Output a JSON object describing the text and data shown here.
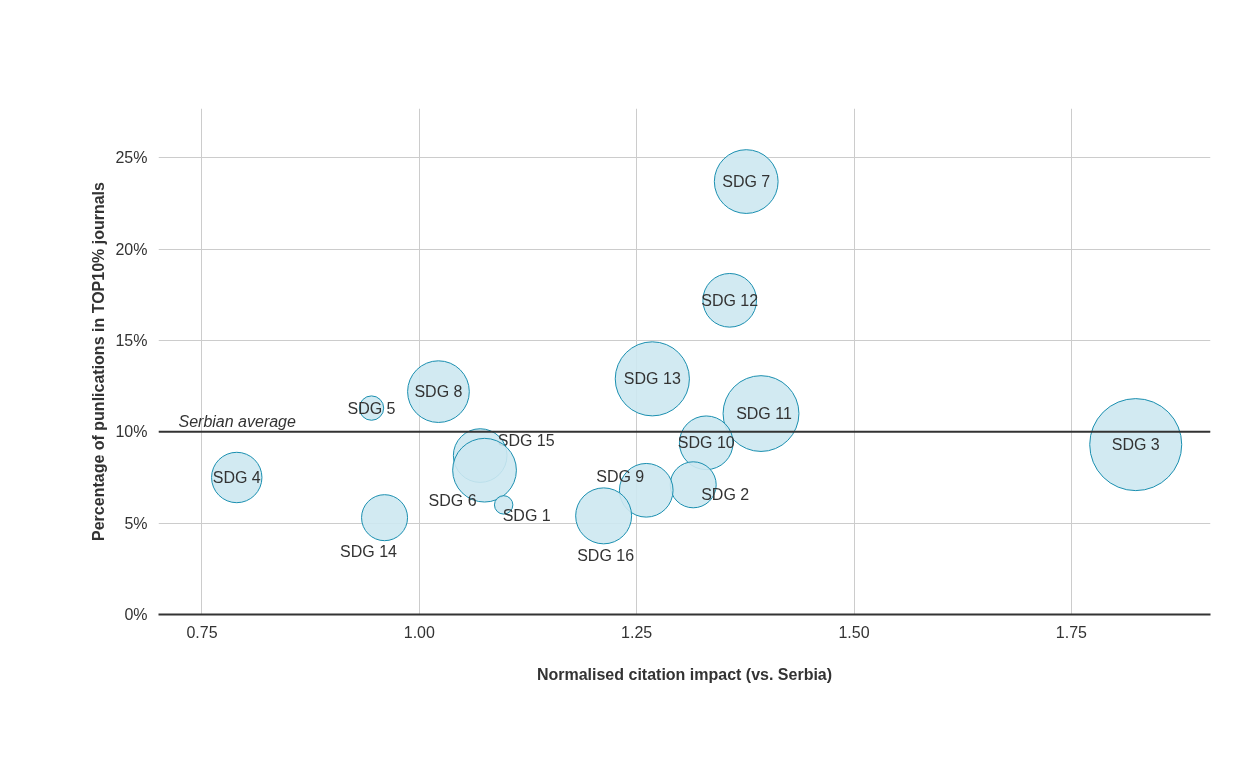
{
  "chart_data": {
    "type": "bubble",
    "xlabel": "Normalised citation impact (vs. Serbia)",
    "ylabel": "Percentage of punlications in TOP10% journals",
    "xlim": [
      0.7,
      1.91
    ],
    "xticks": [
      0.75,
      {
        "value": 1.0,
        "label": "1.00"
      },
      1.25,
      {
        "value": 1.5,
        "label": "1.50"
      },
      1.75
    ],
    "ylim": [
      0,
      27.7
    ],
    "yticks": [
      {
        "value": 0,
        "label": "0%"
      },
      {
        "value": 5,
        "label": "5%"
      },
      {
        "value": 10,
        "label": "10%"
      },
      {
        "value": 15,
        "label": "15%"
      },
      {
        "value": 20,
        "label": "20%"
      },
      {
        "value": 25,
        "label": "25%"
      }
    ],
    "grid": true,
    "ref_lines": [
      {
        "axis": "y",
        "value": 10,
        "label": "Serbian average",
        "color": "#333333"
      }
    ],
    "series": [
      {
        "name": "SDG 7",
        "color": "#cde8f1",
        "x": [
          1.376
        ],
        "values": [
          23.7
        ],
        "sizes": [
          0.48
        ]
      },
      {
        "name": "SDG 12",
        "color": "#cde8f1",
        "x": [
          1.357
        ],
        "values": [
          17.2
        ],
        "sizes": [
          0.34
        ]
      },
      {
        "name": "SDG 13",
        "color": "#cde8f1",
        "x": [
          1.268
        ],
        "values": [
          12.9
        ],
        "sizes": [
          0.65
        ]
      },
      {
        "name": "SDG 11",
        "color": "#cde8f1",
        "x": [
          1.393
        ],
        "values": [
          11.0
        ],
        "sizes": [
          0.68
        ]
      },
      {
        "name": "SDG 3",
        "color": "#cde8f1",
        "x": [
          1.824
        ],
        "values": [
          9.3
        ],
        "sizes": [
          1
        ]
      },
      {
        "name": "SDG 10",
        "color": "#cde8f1",
        "x": [
          1.33
        ],
        "values": [
          9.4
        ],
        "sizes": [
          0.34
        ]
      },
      {
        "name": "SDG 2",
        "color": "#cde8f1",
        "x": [
          1.315
        ],
        "values": [
          7.1
        ],
        "sizes": [
          0.25
        ]
      },
      {
        "name": "SDG 9",
        "color": "#cde8f1",
        "x": [
          1.261
        ],
        "values": [
          6.8
        ],
        "sizes": [
          0.34
        ]
      },
      {
        "name": "SDG 16",
        "color": "#cde8f1",
        "x": [
          1.212
        ],
        "values": [
          5.4
        ],
        "sizes": [
          0.37
        ]
      },
      {
        "name": "SDG 15",
        "color": "#cde8f1",
        "x": [
          1.07
        ],
        "values": [
          8.7
        ],
        "sizes": [
          0.34
        ]
      },
      {
        "name": "SDG 6",
        "color": "#cde8f1",
        "x": [
          1.075
        ],
        "values": [
          7.9
        ],
        "sizes": [
          0.48
        ]
      },
      {
        "name": "SDG 1",
        "color": "#cde8f1",
        "x": [
          1.097
        ],
        "values": [
          6.0
        ],
        "sizes": [
          0.04
        ]
      },
      {
        "name": "SDG 8",
        "color": "#cde8f1",
        "x": [
          1.022
        ],
        "values": [
          12.2
        ],
        "sizes": [
          0.45
        ]
      },
      {
        "name": "SDG 5",
        "color": "#cde8f1",
        "x": [
          0.945
        ],
        "values": [
          11.3
        ],
        "sizes": [
          0.07
        ]
      },
      {
        "name": "SDG 4",
        "color": "#cde8f1",
        "x": [
          0.79
        ],
        "values": [
          7.5
        ],
        "sizes": [
          0.3
        ]
      },
      {
        "name": "SDG 14",
        "color": "#cde8f1",
        "x": [
          0.96
        ],
        "values": [
          5.3
        ],
        "sizes": [
          0.25
        ]
      }
    ]
  }
}
